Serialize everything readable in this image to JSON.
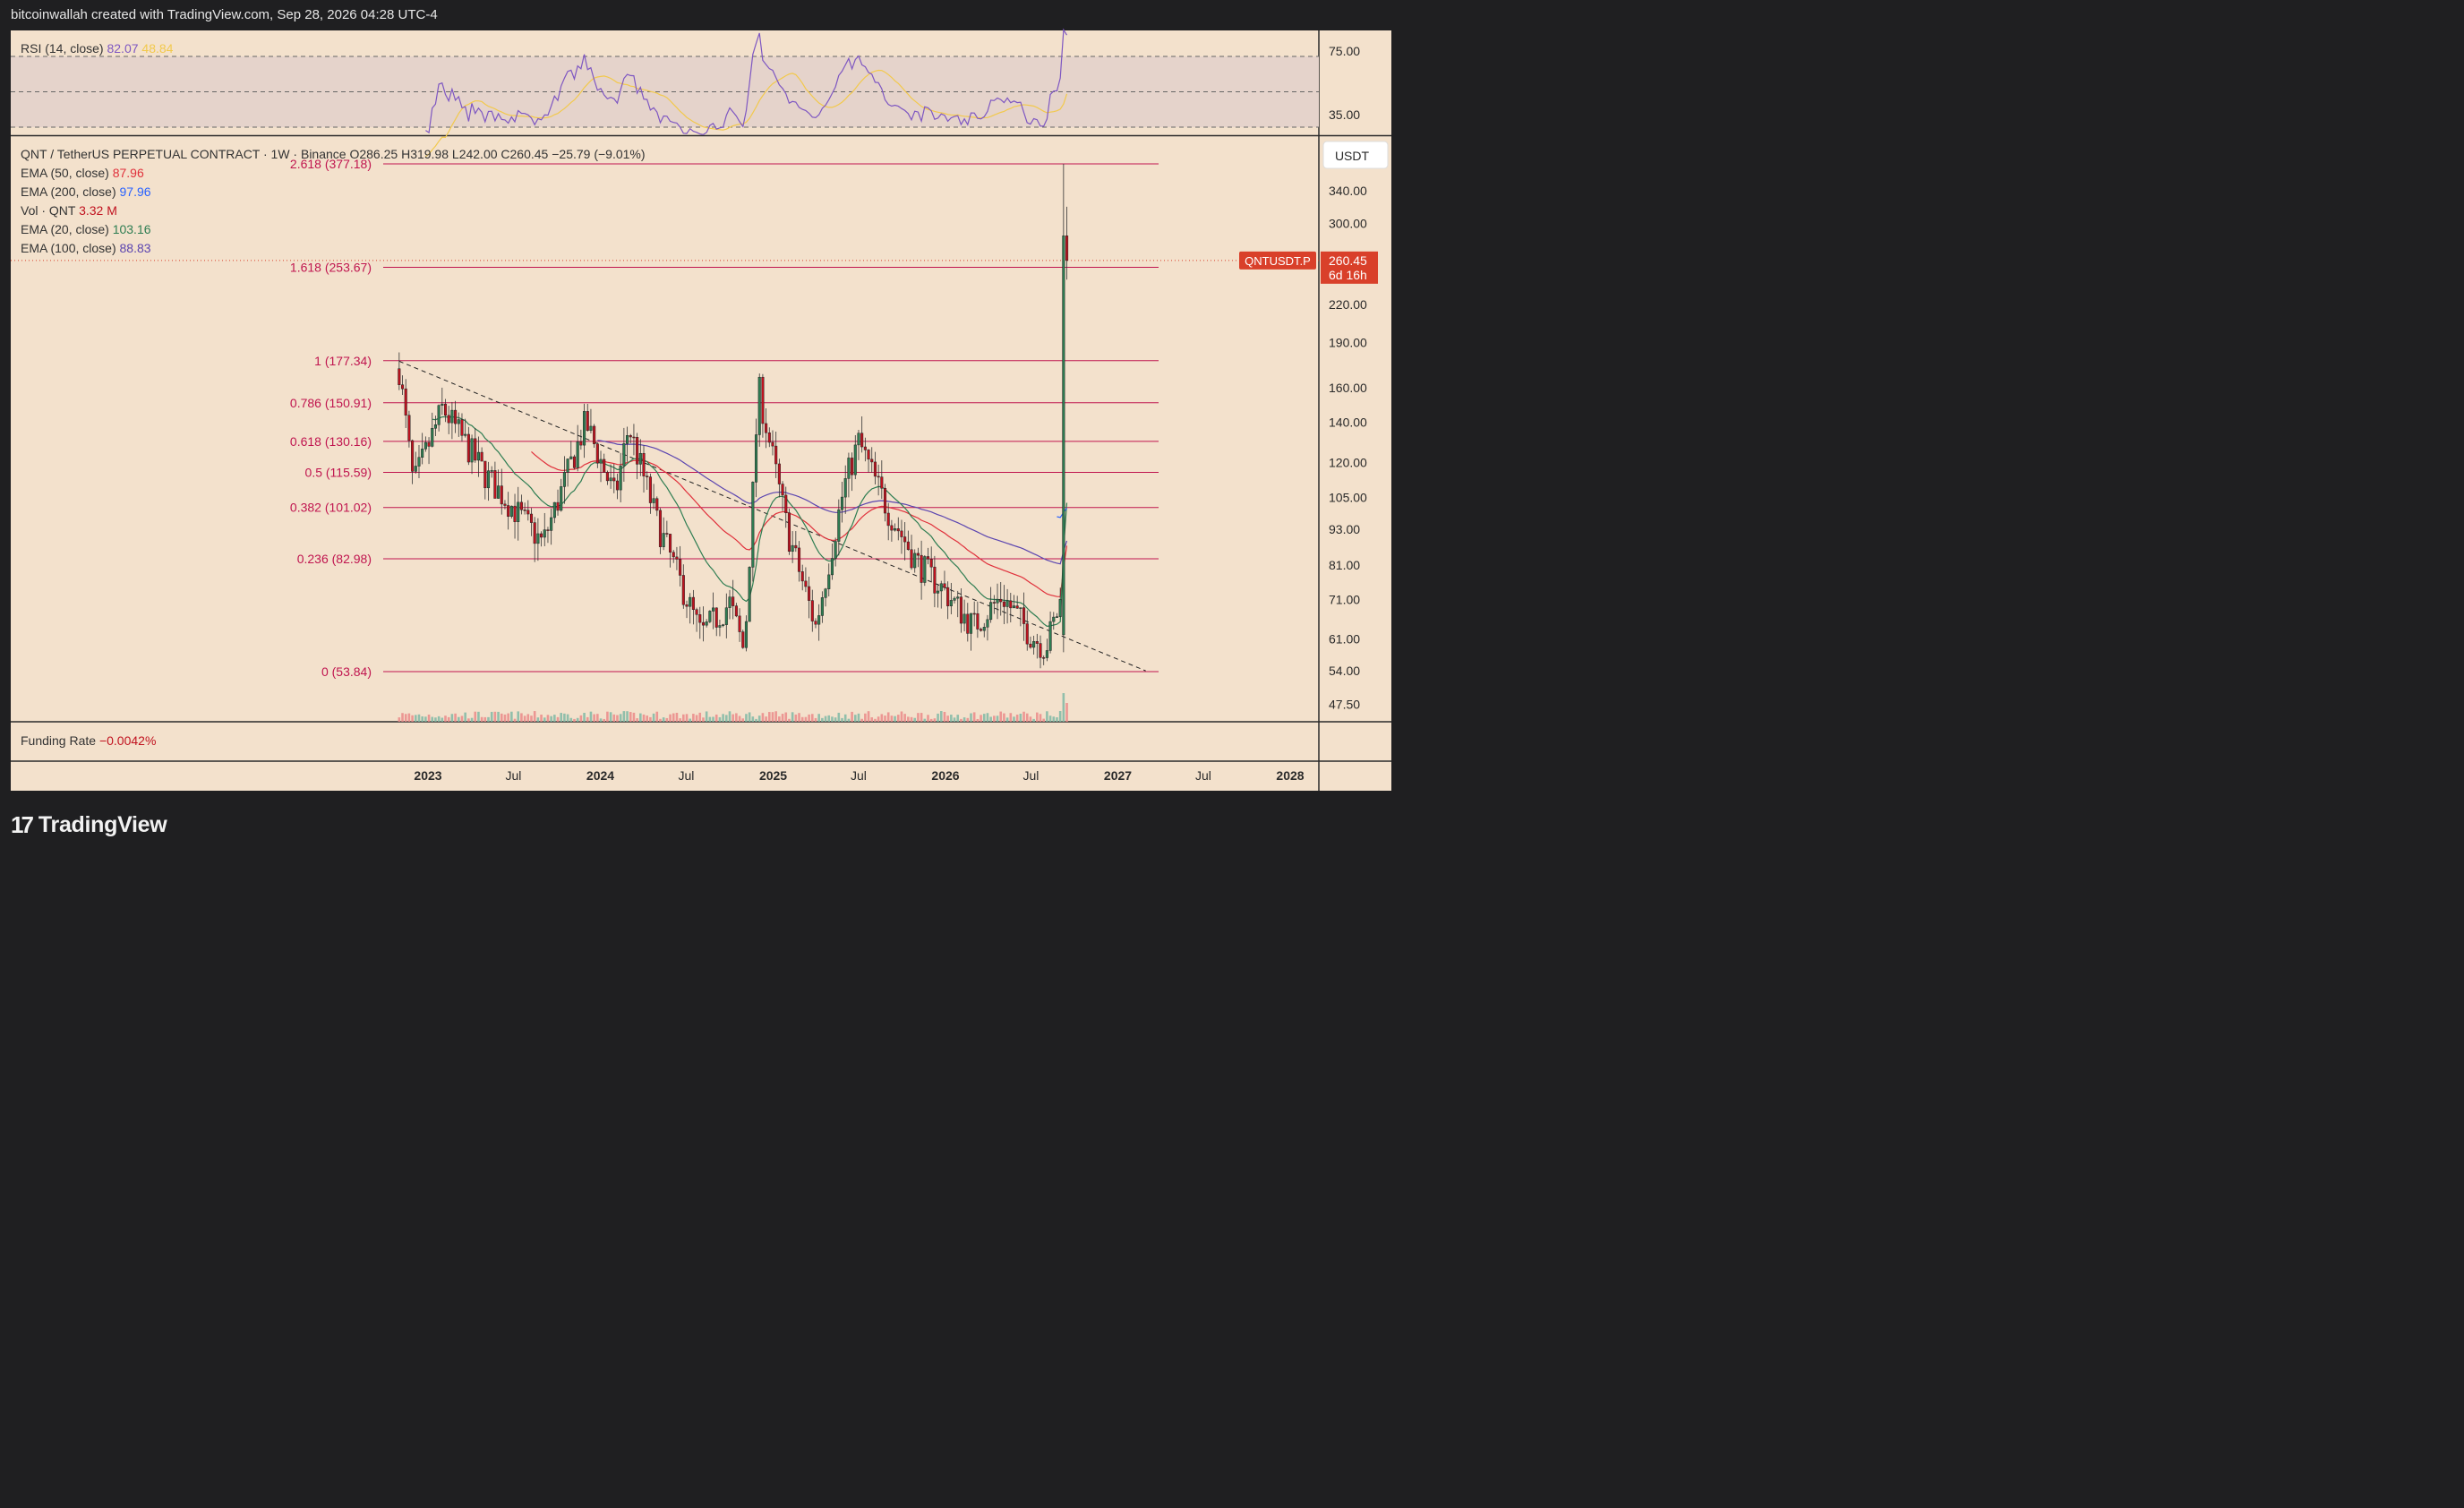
{
  "header": {
    "caption": "bitcoinwallah created with TradingView.com, Sep 28, 2026 04:28 UTC-4"
  },
  "footer": {
    "brand": "TradingView",
    "logo_mark": "17"
  },
  "colors": {
    "panel_bg": "#f3e1cc",
    "rsi_band": "#e5d3cb",
    "up": "#2e7d52",
    "down": "#c1121f",
    "fib": "#c0154f",
    "ema20": "#2e7d52",
    "ema50": "#e0303b",
    "ema100": "#5b45b0",
    "ema200": "#2962ff",
    "rsi_line": "#7e57c2",
    "rsi_ma": "#f2c94c",
    "price_tag": "#d9402a"
  },
  "rsi": {
    "label": "RSI (14, close)",
    "value": "82.07",
    "ma_value": "48.84",
    "axis_labels": [
      "75.00",
      "35.00"
    ]
  },
  "legend": {
    "symbol": "QNT / TetherUS PERPETUAL CONTRACT · 1W · Binance",
    "ohlc": {
      "open": "O286.25",
      "high": "H319.98",
      "low": "L242.00",
      "close": "C260.45",
      "change": "−25.79 (−9.01%)"
    },
    "indicators": [
      {
        "label": "EMA (50, close)",
        "value": "87.96",
        "color_key": "ema50"
      },
      {
        "label": "EMA (200, close)",
        "value": "97.96",
        "color_key": "ema200"
      },
      {
        "label": "Vol · QNT",
        "value": "3.32 M",
        "color_key": "down"
      },
      {
        "label": "EMA (20, close)",
        "value": "103.16",
        "color_key": "ema20"
      },
      {
        "label": "EMA (100, close)",
        "value": "88.83",
        "color_key": "ema100"
      }
    ]
  },
  "price_axis": {
    "currency": "USDT",
    "ticks": [
      "340.00",
      "300.00",
      "260.45",
      "220.00",
      "190.00",
      "160.00",
      "140.00",
      "120.00",
      "105.00",
      "93.00",
      "81.00",
      "71.00",
      "61.00",
      "54.00",
      "47.50"
    ],
    "last_price": "260.45",
    "countdown": "6d 16h",
    "symbol_tag": "QNTUSDT.P"
  },
  "time_axis": {
    "labels": [
      "2023",
      "Jul",
      "2024",
      "Jul",
      "2025",
      "Jul",
      "2026",
      "Jul",
      "2027",
      "Jul",
      "2028"
    ]
  },
  "funding": {
    "label": "Funding Rate",
    "value": "−0.0042%"
  },
  "chart_data": {
    "type": "candlestick",
    "scale": "log",
    "timeframe": "1W",
    "fib_levels": [
      {
        "ratio": "2.618",
        "price": 377.18,
        "label": "2.618 (377.18)"
      },
      {
        "ratio": "1.618",
        "price": 253.67,
        "label": "1.618 (253.67)"
      },
      {
        "ratio": "1",
        "price": 177.34,
        "label": "1 (177.34)"
      },
      {
        "ratio": "0.786",
        "price": 150.91,
        "label": "0.786 (150.91)"
      },
      {
        "ratio": "0.618",
        "price": 130.16,
        "label": "0.618 (130.16)"
      },
      {
        "ratio": "0.5",
        "price": 115.59,
        "label": "0.5 (115.59)"
      },
      {
        "ratio": "0.382",
        "price": 101.02,
        "label": "0.382 (101.02)"
      },
      {
        "ratio": "0.236",
        "price": 82.98,
        "label": "0.236 (82.98)"
      },
      {
        "ratio": "0",
        "price": 53.84,
        "label": "0 (53.84)"
      }
    ],
    "trendline": {
      "from": {
        "date": "2022-11",
        "price": 177
      },
      "to": {
        "date": "2027-03",
        "price": 54
      },
      "style": "dashed"
    },
    "anchors": [
      {
        "date": "2022-11",
        "price": 172
      },
      {
        "date": "2022-12",
        "price": 110
      },
      {
        "date": "2023-02",
        "price": 148
      },
      {
        "date": "2023-05",
        "price": 115
      },
      {
        "date": "2023-09",
        "price": 88
      },
      {
        "date": "2023-12",
        "price": 140
      },
      {
        "date": "2024-02",
        "price": 105
      },
      {
        "date": "2024-03",
        "price": 138
      },
      {
        "date": "2024-05",
        "price": 95
      },
      {
        "date": "2024-08",
        "price": 62
      },
      {
        "date": "2024-10",
        "price": 70
      },
      {
        "date": "2024-11",
        "price": 58
      },
      {
        "date": "2024-12",
        "price": 160
      },
      {
        "date": "2025-02",
        "price": 92
      },
      {
        "date": "2025-04",
        "price": 64
      },
      {
        "date": "2025-06",
        "price": 110
      },
      {
        "date": "2025-07",
        "price": 130
      },
      {
        "date": "2025-09",
        "price": 100
      },
      {
        "date": "2025-11",
        "price": 82
      },
      {
        "date": "2026-01",
        "price": 73
      },
      {
        "date": "2026-03",
        "price": 64
      },
      {
        "date": "2026-05",
        "price": 72
      },
      {
        "date": "2026-07",
        "price": 62
      },
      {
        "date": "2026-08",
        "price": 59
      },
      {
        "date": "2026-09",
        "price": 70
      },
      {
        "date": "2026-09-21",
        "price": 286.25
      }
    ],
    "last_bar": {
      "open": 286.25,
      "high": 319.98,
      "low": 242.0,
      "close": 260.45
    },
    "ema": {
      "ema20": 103.16,
      "ema50": 87.96,
      "ema100": 88.83,
      "ema200": 97.96
    },
    "volume_last": "3.32 M",
    "rsi_last": 82.07,
    "rsi_ma_last": 48.84
  }
}
